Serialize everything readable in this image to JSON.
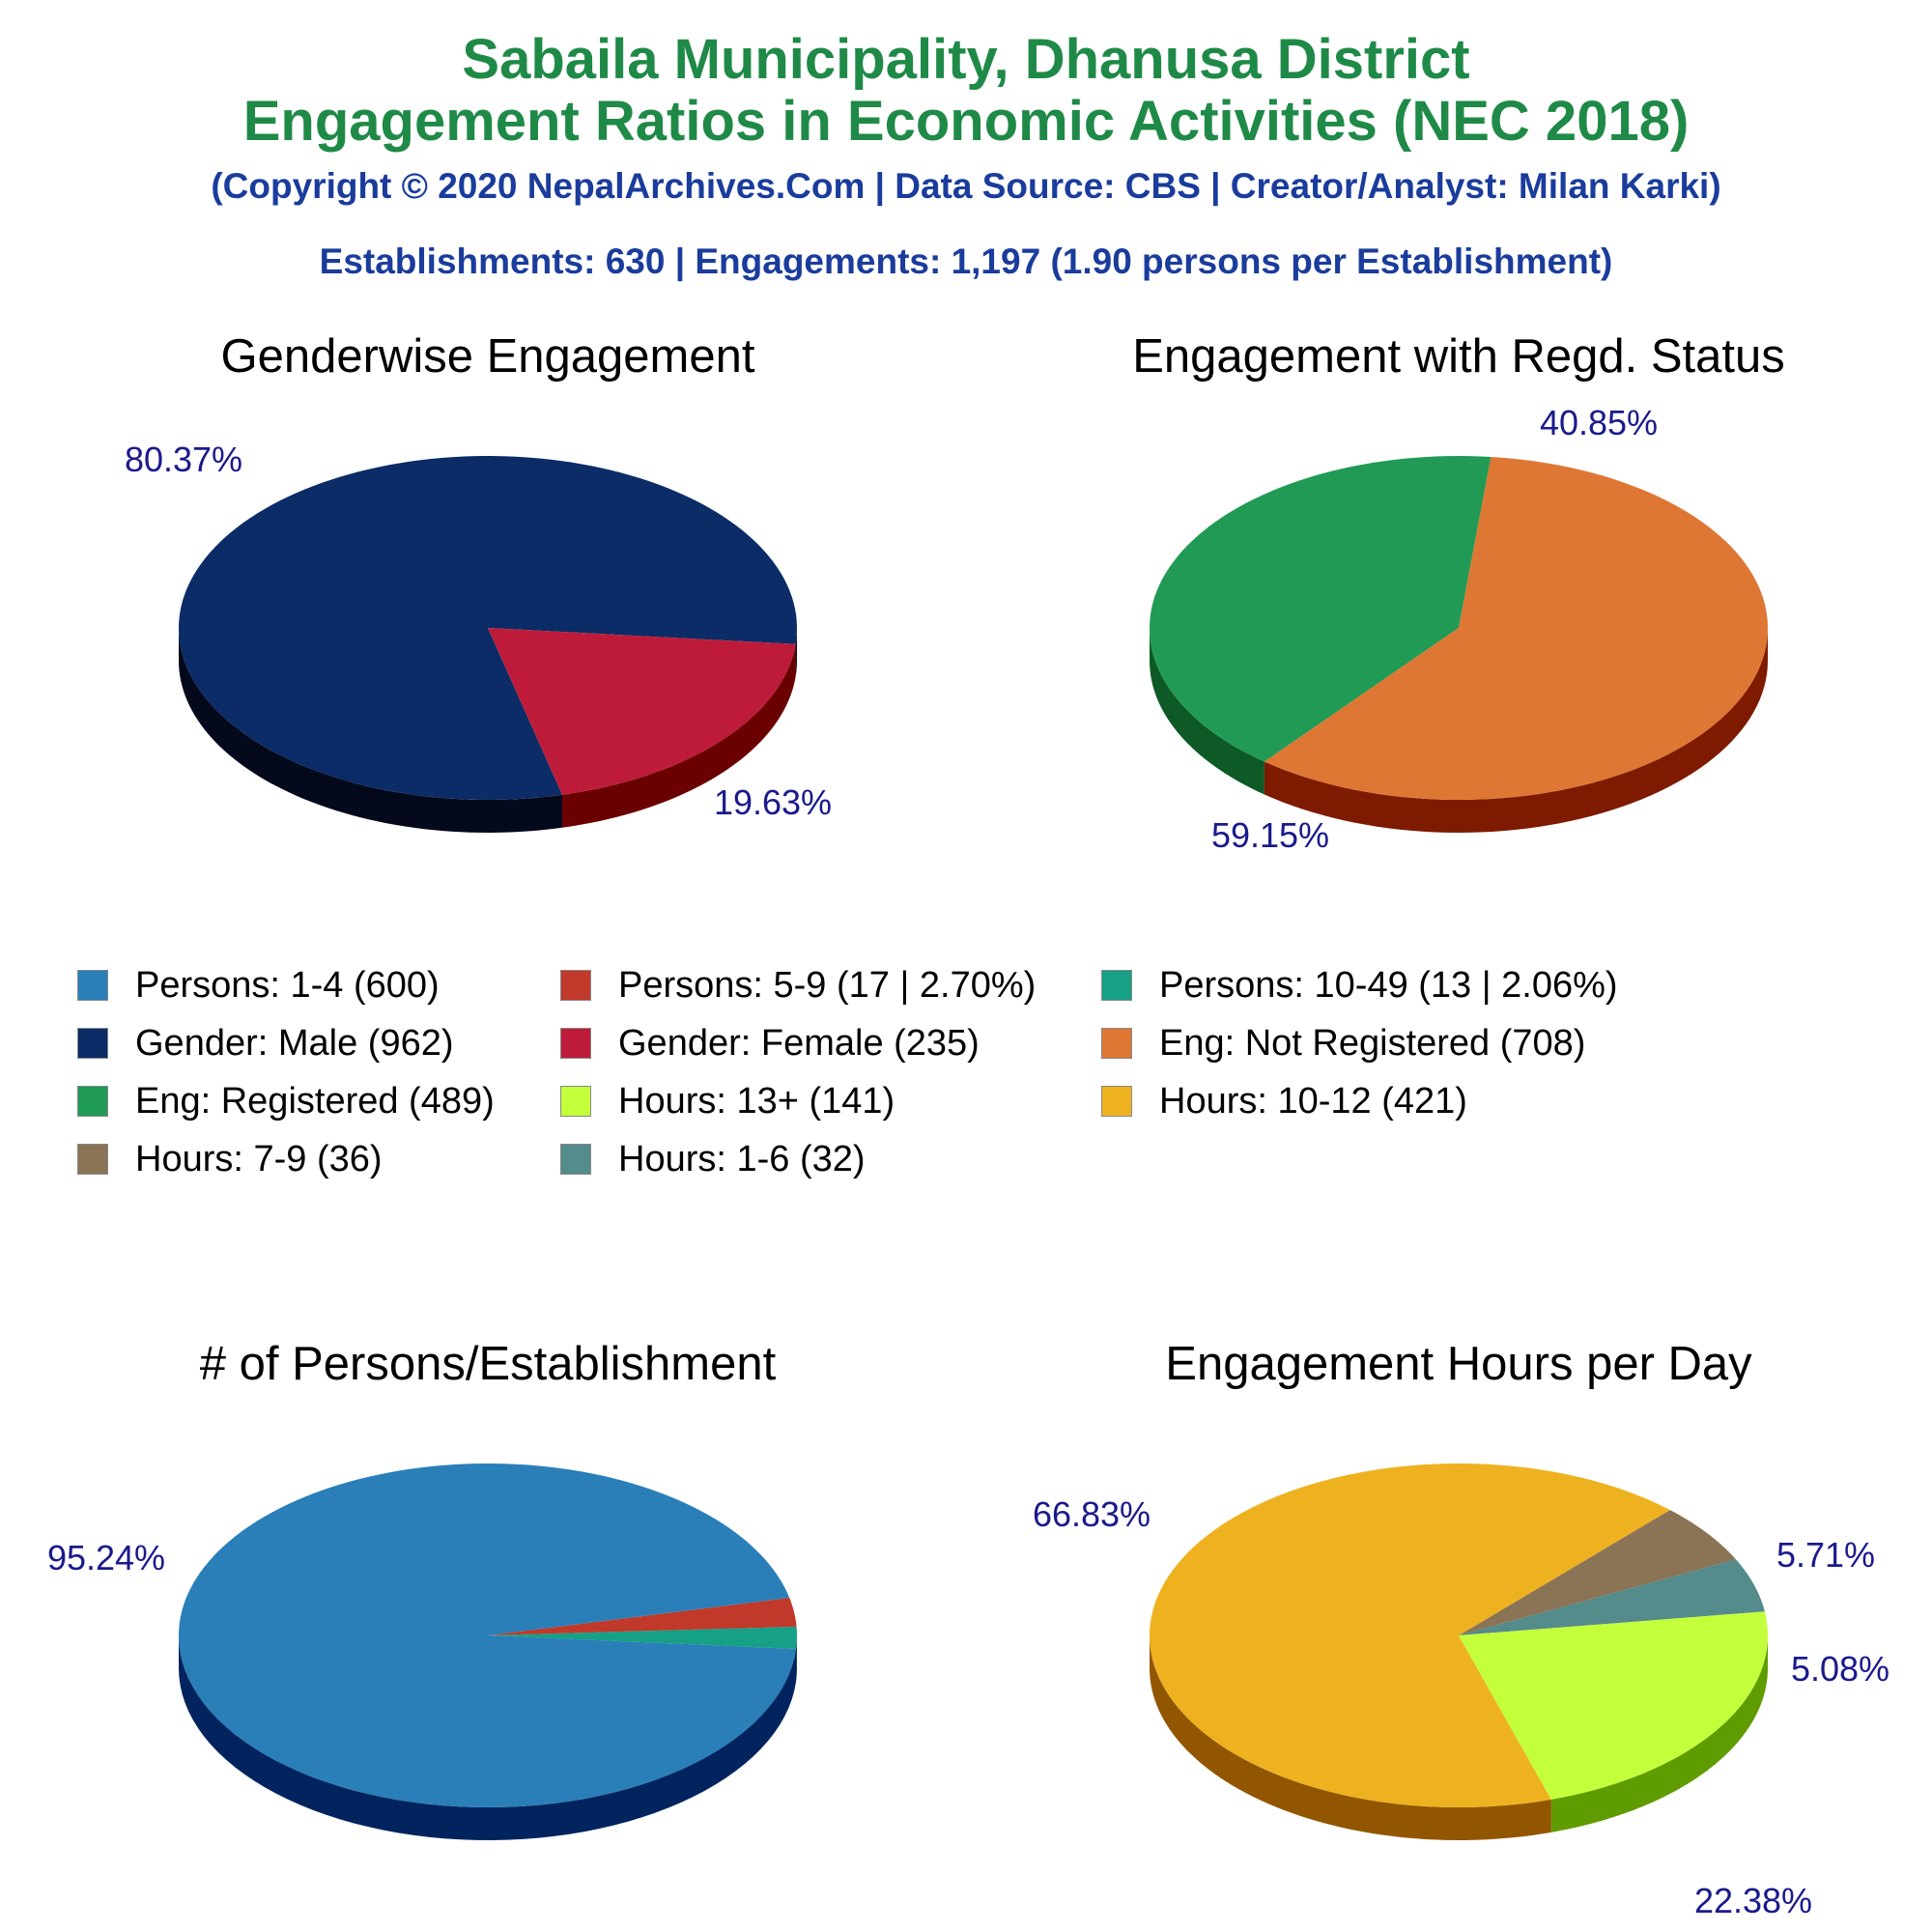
{
  "header": {
    "title_line1": "Sabaila Municipality, Dhanusa District",
    "title_line2": "Engagement Ratios in Economic Activities (NEC 2018)",
    "copyright": "(Copyright © 2020 NepalArchives.Com | Data Source: CBS | Creator/Analyst: Milan Karki)",
    "summary": "Establishments: 630 | Engagements: 1,197 (1.90 persons per Establishment)"
  },
  "colors": {
    "title": "#1f8a47",
    "subtitle": "#1a3c9c",
    "pct_label": "#1a1a8c"
  },
  "legend": [
    {
      "label": "Persons: 1-4 (600)",
      "color": "#2a7fb8"
    },
    {
      "label": "Persons: 5-9 (17 | 2.70%)",
      "color": "#c0392b"
    },
    {
      "label": "Persons: 10-49 (13 | 2.06%)",
      "color": "#16a085"
    },
    {
      "label": "Gender: Male (962)",
      "color": "#0b2c66"
    },
    {
      "label": "Gender: Female (235)",
      "color": "#be1b3a"
    },
    {
      "label": "Eng: Not Registered (708)",
      "color": "#de7733"
    },
    {
      "label": "Eng: Registered (489)",
      "color": "#219a55"
    },
    {
      "label": "Hours: 13+ (141)",
      "color": "#c4ff3c"
    },
    {
      "label": "Hours: 10-12 (421)",
      "color": "#eeb220"
    },
    {
      "label": "Hours: 7-9 (36)",
      "color": "#8b7355"
    },
    {
      "label": "Hours: 1-6 (32)",
      "color": "#548b8b"
    }
  ],
  "chart_data": [
    {
      "type": "pie",
      "title": "Genderwise Engagement",
      "slices": [
        {
          "name": "Gender: Male",
          "value": 962,
          "pct": "80.37%",
          "color": "#0b2c66",
          "side": "#05091c"
        },
        {
          "name": "Gender: Female",
          "value": 235,
          "pct": "19.63%",
          "color": "#be1b3a",
          "side": "#6b0000"
        }
      ]
    },
    {
      "type": "pie",
      "title": "Engagement with Regd. Status",
      "slices": [
        {
          "name": "Eng: Registered",
          "value": 489,
          "pct": "40.85%",
          "color": "#219a55",
          "side": "#0d5a26"
        },
        {
          "name": "Eng: Not Registered",
          "value": 708,
          "pct": "59.15%",
          "color": "#de7733",
          "side": "#7e1a00"
        }
      ]
    },
    {
      "type": "pie",
      "title": "# of Persons/Establishment",
      "slices": [
        {
          "name": "Persons: 10-49",
          "value": 13,
          "pct": "",
          "color": "#16a085",
          "side": "#0a4a3a"
        },
        {
          "name": "Persons: 5-9",
          "value": 17,
          "pct": "",
          "color": "#c0392b",
          "side": "#6b0000"
        },
        {
          "name": "Persons: 1-4",
          "value": 600,
          "pct": "95.24%",
          "color": "#2a7fb8",
          "side": "#02245e"
        }
      ]
    },
    {
      "type": "pie",
      "title": "Engagement Hours per Day",
      "slices": [
        {
          "name": "Hours: 1-6",
          "value": 32,
          "pct": "5.08%",
          "color": "#548b8b",
          "side": "#2c4b4b"
        },
        {
          "name": "Hours: 7-9",
          "value": 36,
          "pct": "5.71%",
          "color": "#8b7355",
          "side": "#4a3a22"
        },
        {
          "name": "Hours: 10-12",
          "value": 421,
          "pct": "66.83%",
          "color": "#eeb220",
          "side": "#935600"
        },
        {
          "name": "Hours: 13+",
          "value": 141,
          "pct": "22.38%",
          "color": "#c4ff3c",
          "side": "#5f9c00"
        }
      ]
    }
  ]
}
